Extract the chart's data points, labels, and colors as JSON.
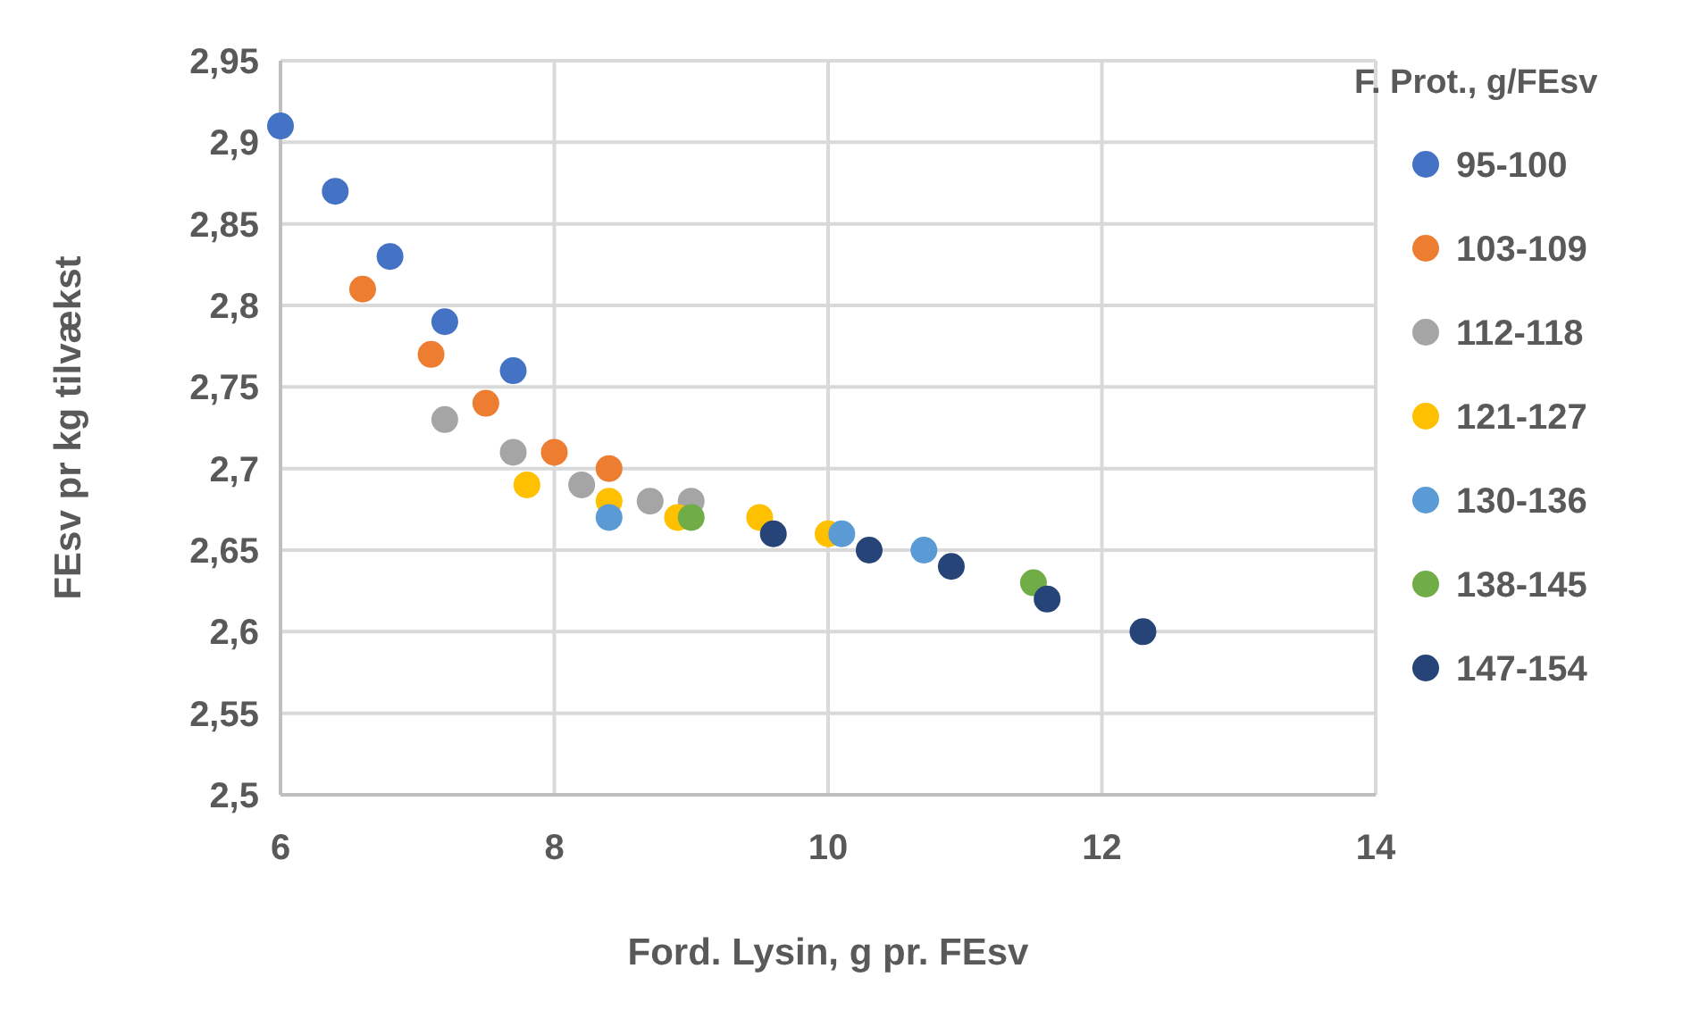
{
  "chart_data": {
    "type": "scatter",
    "xlabel": "Ford. Lysin, g pr. FEsv",
    "ylabel": "FEsv pr kg tilvækst",
    "legend_title": "F. Prot., g/FEsv",
    "legend": "right",
    "grid": true,
    "marker": "circle",
    "xlim": [
      6,
      14
    ],
    "xticks": [
      6,
      8,
      10,
      12,
      14
    ],
    "ylim": [
      2.5,
      2.95
    ],
    "yticks": [
      {
        "value": 2.5,
        "label": "2,5"
      },
      {
        "value": 2.55,
        "label": "2,55"
      },
      {
        "value": 2.6,
        "label": "2,6"
      },
      {
        "value": 2.65,
        "label": "2,65"
      },
      {
        "value": 2.7,
        "label": "2,7"
      },
      {
        "value": 2.75,
        "label": "2,75"
      },
      {
        "value": 2.8,
        "label": "2,8"
      },
      {
        "value": 2.85,
        "label": "2,85"
      },
      {
        "value": 2.9,
        "label": "2,9"
      },
      {
        "value": 2.95,
        "label": "2,95"
      }
    ],
    "series": [
      {
        "name": "95-100",
        "color": "#4472c4",
        "x": [
          6,
          6.4,
          6.8,
          7.2,
          7.7
        ],
        "values": [
          2.91,
          2.87,
          2.83,
          2.79,
          2.76
        ]
      },
      {
        "name": "103-109",
        "color": "#ed7d31",
        "x": [
          6.6,
          7.1,
          7.5,
          8,
          8.4
        ],
        "values": [
          2.81,
          2.77,
          2.74,
          2.71,
          2.7
        ]
      },
      {
        "name": "112-118",
        "color": "#a5a5a5",
        "x": [
          7.2,
          7.7,
          8.2,
          8.7,
          9
        ],
        "values": [
          2.73,
          2.71,
          2.69,
          2.68,
          2.68
        ]
      },
      {
        "name": "121-127",
        "color": "#ffc000",
        "x": [
          7.8,
          8.4,
          8.9,
          9.5,
          10
        ],
        "values": [
          2.69,
          2.68,
          2.67,
          2.67,
          2.66
        ]
      },
      {
        "name": "130-136",
        "color": "#5b9bd5",
        "x": [
          8.4,
          10.1,
          10.7
        ],
        "values": [
          2.67,
          2.66,
          2.65
        ]
      },
      {
        "name": "138-145",
        "color": "#70ad47",
        "x": [
          9,
          11.5
        ],
        "values": [
          2.67,
          2.63
        ]
      },
      {
        "name": "147-154",
        "color": "#264478",
        "x": [
          9.6,
          10.3,
          10.9,
          11.6,
          12.3
        ],
        "values": [
          2.66,
          2.65,
          2.64,
          2.62,
          2.6
        ]
      }
    ]
  }
}
